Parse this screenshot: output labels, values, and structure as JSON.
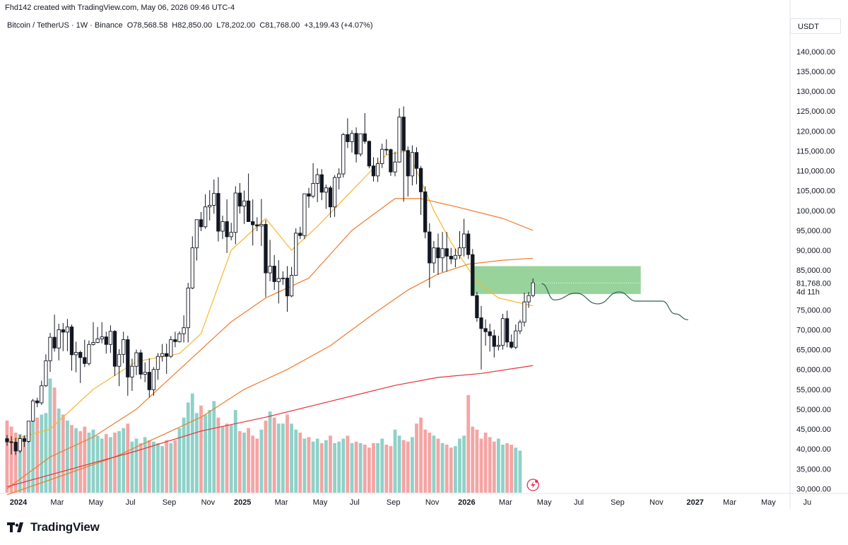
{
  "header": {
    "created_line": "Fhd142 created with TradingView.com, May 06, 2026 09:46 UTC-4",
    "symbol": "Bitcoin / TetherUS · 1W · Binance",
    "open": "O78,568.58",
    "high": "H82,850.00",
    "low": "L78,202.00",
    "close": "C81,768.00",
    "change": "+3,199.43 (+4.07%)"
  },
  "currency": "USDT",
  "last_price": {
    "label": "81,768.00",
    "countdown": "4d 11h"
  },
  "brand": {
    "name": "TradingView",
    "icon": "tradingview-logo"
  },
  "colors": {
    "up": "#26a69a",
    "down": "#ef5350",
    "ma_yellow": "#f5b82e",
    "ma_orange": "#f27a2a",
    "ma_red": "#e5303a",
    "zone": "#74c47a",
    "projection": "#2f5f4f",
    "candle": "#131722"
  },
  "chart_data": {
    "type": "candlestick",
    "y_axis": {
      "min": 29000,
      "max": 143000,
      "ticks": [
        "140,000.00",
        "135,000.00",
        "130,000.00",
        "125,000.00",
        "120,000.00",
        "115,000.00",
        "110,000.00",
        "105,000.00",
        "100,000.00",
        "95,000.00",
        "90,000.00",
        "85,000.00",
        "75,000.00",
        "70,000.00",
        "65,000.00",
        "60,000.00",
        "55,000.00",
        "50,000.00",
        "45,000.00",
        "40,000.00",
        "35,000.00",
        "30,000.00"
      ],
      "tick_values": [
        140000,
        135000,
        130000,
        125000,
        120000,
        115000,
        110000,
        105000,
        100000,
        95000,
        90000,
        85000,
        75000,
        70000,
        65000,
        60000,
        55000,
        50000,
        45000,
        40000,
        35000,
        30000
      ]
    },
    "x_axis": {
      "ticks": [
        "2024",
        "Mar",
        "May",
        "Jul",
        "Sep",
        "Nov",
        "2025",
        "Mar",
        "May",
        "Jul",
        "Sep",
        "Nov",
        "2026",
        "Mar",
        "May",
        "Jul",
        "Sep",
        "Nov",
        "2027",
        "Mar",
        "May",
        "Ju"
      ],
      "tick_weeks": [
        0,
        9,
        18,
        26,
        35,
        44,
        52,
        61,
        70,
        78,
        87,
        96,
        104,
        113,
        122,
        130,
        139,
        148,
        157,
        165,
        174,
        183
      ],
      "bold": [
        "2024",
        "2025",
        "2026",
        "2027"
      ]
    },
    "ohlc_weeks": [
      [
        42600,
        43500,
        40800,
        41800
      ],
      [
        41800,
        43200,
        38600,
        41700
      ],
      [
        41700,
        42800,
        38500,
        39500
      ],
      [
        39500,
        43500,
        39000,
        42600
      ],
      [
        42600,
        43400,
        40500,
        41900
      ],
      [
        41900,
        47000,
        41600,
        47000
      ],
      [
        47000,
        52600,
        46800,
        52100
      ],
      [
        52100,
        52900,
        50500,
        51600
      ],
      [
        51600,
        57200,
        51100,
        55900
      ],
      [
        55900,
        63800,
        55600,
        62200
      ],
      [
        62200,
        69200,
        59400,
        68100
      ],
      [
        68100,
        73800,
        64500,
        65400
      ],
      [
        65400,
        71500,
        62300,
        70000
      ],
      [
        70000,
        71700,
        64600,
        69400
      ],
      [
        69400,
        72700,
        64600,
        70700
      ],
      [
        70700,
        71300,
        59700,
        63700
      ],
      [
        63700,
        67000,
        59300,
        64300
      ],
      [
        64300,
        64700,
        56600,
        63000
      ],
      [
        63000,
        67500,
        60600,
        61500
      ],
      [
        61500,
        67300,
        61000,
        66300
      ],
      [
        66300,
        71900,
        66000,
        66800
      ],
      [
        66800,
        70700,
        66600,
        67700
      ],
      [
        67700,
        71900,
        66600,
        68200
      ],
      [
        68200,
        69500,
        64000,
        66300
      ],
      [
        66300,
        71100,
        64200,
        69600
      ],
      [
        69600,
        69900,
        58400,
        60800
      ],
      [
        60800,
        65100,
        55800,
        63800
      ],
      [
        63800,
        69500,
        61600,
        67500
      ],
      [
        67500,
        68500,
        53400,
        58100
      ],
      [
        58100,
        62700,
        54600,
        60800
      ],
      [
        60800,
        65000,
        58600,
        64200
      ],
      [
        64200,
        65000,
        57600,
        58800
      ],
      [
        58800,
        61800,
        56800,
        59300
      ],
      [
        59300,
        62800,
        53000,
        54900
      ],
      [
        54900,
        60600,
        53400,
        60000
      ],
      [
        60000,
        64100,
        57400,
        63300
      ],
      [
        63300,
        66400,
        62000,
        64000
      ],
      [
        64000,
        66500,
        58900,
        63300
      ],
      [
        63300,
        68400,
        62900,
        67500
      ],
      [
        67500,
        69500,
        65600,
        67000
      ],
      [
        67000,
        69600,
        66800,
        69000
      ],
      [
        69000,
        73600,
        66800,
        70500
      ],
      [
        70500,
        81800,
        66800,
        80500
      ],
      [
        80500,
        93500,
        80200,
        90600
      ],
      [
        90600,
        94900,
        87400,
        97700
      ],
      [
        97700,
        99600,
        94800,
        95900
      ],
      [
        95900,
        104100,
        95400,
        100900
      ],
      [
        100900,
        105100,
        97500,
        101300
      ],
      [
        101300,
        107800,
        99200,
        104300
      ],
      [
        104300,
        108400,
        92200,
        94800
      ],
      [
        94800,
        98700,
        92800,
        97200
      ],
      [
        97200,
        102800,
        89300,
        93400
      ],
      [
        93400,
        96900,
        92500,
        94500
      ],
      [
        94500,
        106100,
        91500,
        104400
      ],
      [
        104400,
        106900,
        99200,
        101100
      ],
      [
        101100,
        105000,
        96600,
        102400
      ],
      [
        102400,
        109300,
        101800,
        97200
      ],
      [
        97200,
        102800,
        91200,
        96400
      ],
      [
        96400,
        98300,
        94800,
        96100
      ],
      [
        96100,
        102900,
        91100,
        96500
      ],
      [
        96500,
        97600,
        78200,
        84300
      ],
      [
        84300,
        92600,
        82200,
        86000
      ],
      [
        86000,
        88800,
        80000,
        82100
      ],
      [
        82100,
        87500,
        76600,
        82900
      ],
      [
        82900,
        84700,
        81300,
        83000
      ],
      [
        83000,
        86000,
        74500,
        78500
      ],
      [
        78500,
        85800,
        78200,
        83700
      ],
      [
        83700,
        95500,
        83600,
        94300
      ],
      [
        94300,
        95900,
        92800,
        93700
      ],
      [
        93700,
        104100,
        92800,
        104200
      ],
      [
        104200,
        105700,
        100700,
        103600
      ],
      [
        103600,
        111900,
        103100,
        106800
      ],
      [
        106800,
        110600,
        102100,
        109000
      ],
      [
        109000,
        110400,
        102600,
        104600
      ],
      [
        104600,
        106500,
        100400,
        105700
      ],
      [
        105700,
        106200,
        98200,
        100900
      ],
      [
        100900,
        108900,
        98400,
        108300
      ],
      [
        108300,
        110600,
        105300,
        109200
      ],
      [
        109200,
        119500,
        108300,
        119100
      ],
      [
        119100,
        123200,
        115700,
        117300
      ],
      [
        117300,
        120200,
        114600,
        119400
      ],
      [
        119400,
        120900,
        112100,
        114200
      ],
      [
        114200,
        119300,
        113600,
        119300
      ],
      [
        119300,
        124500,
        116800,
        117400
      ],
      [
        117400,
        117600,
        110600,
        111200
      ],
      [
        111200,
        113400,
        107300,
        108700
      ],
      [
        108700,
        113300,
        107200,
        111800
      ],
      [
        111800,
        116800,
        110700,
        115400
      ],
      [
        115400,
        117900,
        114000,
        115300
      ],
      [
        115300,
        115600,
        108700,
        109700
      ],
      [
        109700,
        114800,
        108600,
        112200
      ],
      [
        112200,
        125700,
        112000,
        123500
      ],
      [
        123500,
        126200,
        102200,
        115100
      ],
      [
        115100,
        116100,
        103500,
        108700
      ],
      [
        108700,
        116400,
        106300,
        114600
      ],
      [
        114600,
        115900,
        106600,
        110600
      ],
      [
        110600,
        111200,
        98900,
        104700
      ],
      [
        104700,
        106100,
        93000,
        94600
      ],
      [
        94600,
        96800,
        80600,
        86800
      ],
      [
        86800,
        92300,
        84300,
        90600
      ],
      [
        90600,
        94200,
        83800,
        88100
      ],
      [
        88100,
        94600,
        84500,
        90400
      ],
      [
        90400,
        94600,
        84600,
        88500
      ],
      [
        88500,
        90600,
        86500,
        87800
      ],
      [
        87800,
        90400,
        85700,
        88700
      ],
      [
        88700,
        94800,
        87800,
        90600
      ],
      [
        90600,
        97900,
        88400,
        94100
      ],
      [
        94100,
        95000,
        87800,
        88900
      ],
      [
        88900,
        90300,
        81000,
        78600
      ],
      [
        78600,
        79500,
        72000,
        73000
      ],
      [
        73000,
        76000,
        60000,
        70300
      ],
      [
        70300,
        72600,
        66000,
        69500
      ],
      [
        69500,
        71500,
        64500,
        68500
      ],
      [
        68500,
        70000,
        63000,
        65800
      ],
      [
        65800,
        68500,
        64800,
        66100
      ],
      [
        66100,
        74000,
        65000,
        72800
      ],
      [
        72800,
        74800,
        65600,
        66900
      ],
      [
        66900,
        68800,
        65200,
        65600
      ],
      [
        65600,
        71300,
        65100,
        69700
      ],
      [
        69700,
        72500,
        68900,
        71900
      ],
      [
        71900,
        79300,
        70800,
        77000
      ],
      [
        77000,
        79500,
        75500,
        78600
      ],
      [
        78600,
        82900,
        78200,
        81800
      ]
    ],
    "volume_weeks": [
      48,
      44,
      40,
      39,
      38,
      42,
      56,
      50,
      52,
      53,
      76,
      70,
      56,
      52,
      48,
      45,
      43,
      41,
      44,
      40,
      42,
      38,
      36,
      39,
      37,
      40,
      41,
      43,
      46,
      34,
      36,
      33,
      37,
      35,
      34,
      33,
      31,
      35,
      33,
      35,
      43,
      50,
      60,
      66,
      53,
      58,
      52,
      55,
      61,
      50,
      44,
      46,
      45,
      55,
      41,
      40,
      43,
      38,
      36,
      42,
      48,
      54,
      50,
      46,
      46,
      52,
      46,
      42,
      40,
      36,
      37,
      34,
      36,
      33,
      35,
      38,
      33,
      34,
      36,
      38,
      33,
      34,
      33,
      32,
      30,
      33,
      33,
      36,
      32,
      31,
      42,
      38,
      35,
      34,
      37,
      46,
      50,
      42,
      40,
      38,
      36,
      33,
      32,
      30,
      31,
      36,
      38,
      65,
      44,
      42,
      36,
      40,
      37,
      34,
      36,
      32,
      33,
      32,
      30,
      28
    ],
    "moving_averages": [
      {
        "color": "yellow",
        "values": [
          [
            0,
            42000
          ],
          [
            10,
            45000
          ],
          [
            20,
            55000
          ],
          [
            30,
            62000
          ],
          [
            40,
            64000
          ],
          [
            45,
            69000
          ],
          [
            52,
            90000
          ],
          [
            60,
            98000
          ],
          [
            66,
            90000
          ],
          [
            72,
            96000
          ],
          [
            80,
            105000
          ],
          [
            88,
            114000
          ],
          [
            93,
            115000
          ],
          [
            99,
            100000
          ],
          [
            103,
            92000
          ],
          [
            109,
            82000
          ],
          [
            114,
            78000
          ],
          [
            122,
            76000
          ]
        ]
      },
      {
        "color": "orange",
        "values": [
          [
            0,
            30000
          ],
          [
            10,
            38000
          ],
          [
            20,
            43000
          ],
          [
            30,
            50000
          ],
          [
            40,
            60000
          ],
          [
            52,
            72000
          ],
          [
            60,
            78000
          ],
          [
            70,
            83000
          ],
          [
            80,
            95000
          ],
          [
            90,
            103000
          ],
          [
            96,
            103000
          ],
          [
            104,
            101000
          ],
          [
            115,
            98000
          ],
          [
            122,
            95000
          ]
        ]
      },
      {
        "color": "orange-long",
        "values": [
          [
            0,
            28500
          ],
          [
            12,
            33000
          ],
          [
            25,
            38000
          ],
          [
            35,
            43000
          ],
          [
            45,
            48000
          ],
          [
            55,
            55000
          ],
          [
            65,
            60000
          ],
          [
            75,
            66000
          ],
          [
            85,
            74000
          ],
          [
            93,
            80000
          ],
          [
            100,
            84000
          ],
          [
            107,
            86500
          ],
          [
            115,
            87500
          ],
          [
            122,
            88000
          ]
        ]
      },
      {
        "color": "red",
        "values": [
          [
            0,
            30500
          ],
          [
            15,
            35000
          ],
          [
            30,
            39500
          ],
          [
            45,
            44500
          ],
          [
            60,
            48000
          ],
          [
            75,
            52000
          ],
          [
            90,
            56000
          ],
          [
            100,
            58000
          ],
          [
            110,
            59000
          ],
          [
            122,
            61000
          ]
        ]
      }
    ],
    "zone": {
      "from_week": 108,
      "to_week": 147,
      "low": 79000,
      "high": 86000
    },
    "projection": [
      [
        124,
        81600
      ],
      [
        127,
        77500
      ],
      [
        132,
        79200
      ],
      [
        137,
        76500
      ],
      [
        142,
        79500
      ],
      [
        146,
        77200
      ],
      [
        152,
        77200
      ],
      [
        155,
        74000
      ],
      [
        158,
        72500
      ]
    ]
  }
}
